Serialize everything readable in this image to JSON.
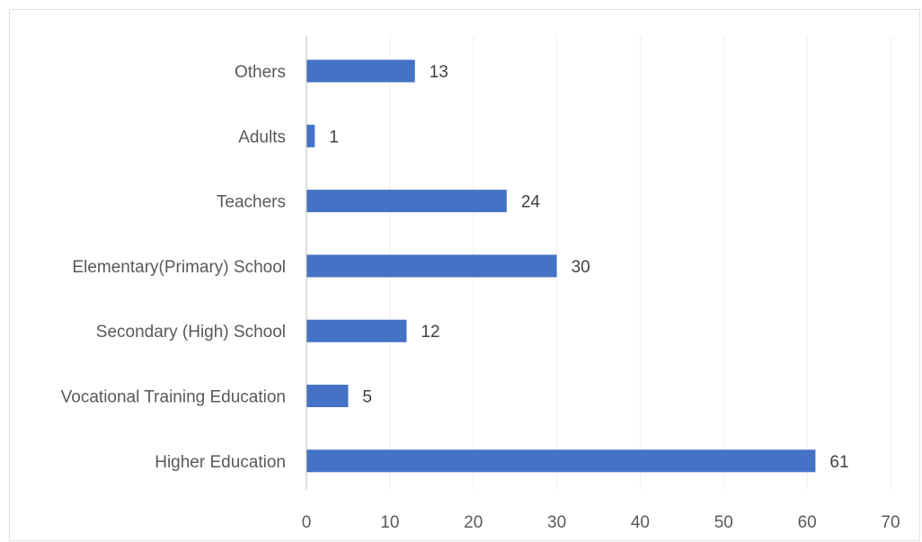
{
  "chart_data": {
    "type": "bar",
    "orientation": "horizontal",
    "categories": [
      "Others",
      "Adults",
      "Teachers",
      "Elementary(Primary) School",
      "Secondary (High) School",
      "Vocational Training Education",
      "Higher Education"
    ],
    "values": [
      13,
      1,
      24,
      30,
      12,
      5,
      61
    ],
    "xlim": [
      0,
      70
    ],
    "xticks": [
      0,
      10,
      20,
      30,
      40,
      50,
      60,
      70
    ],
    "title": "",
    "xlabel": "",
    "ylabel": "",
    "grid": "vertical",
    "legend": "none",
    "colors": {
      "bar": "#4472c4",
      "grid": "#eeeeee",
      "axis": "#bfbfbf"
    }
  }
}
